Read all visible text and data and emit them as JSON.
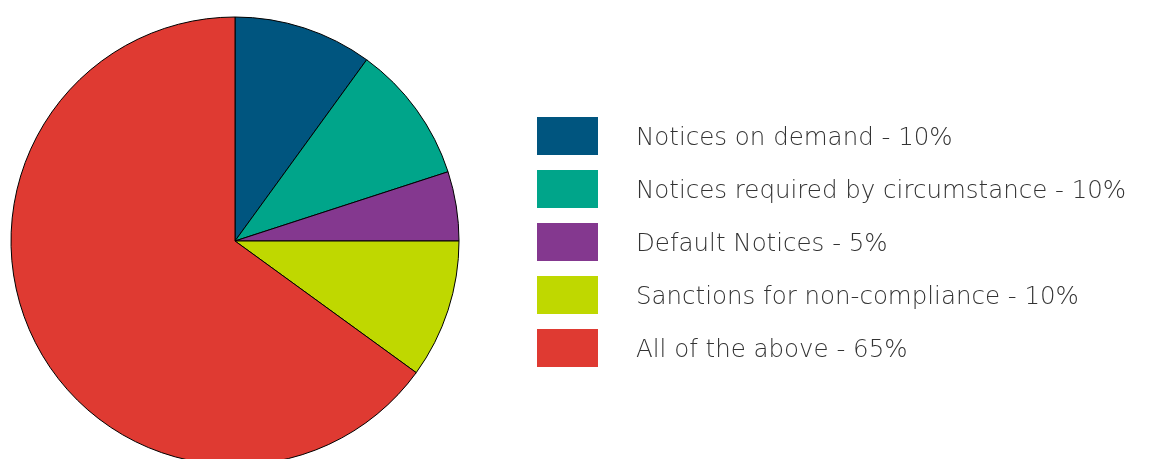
{
  "chart_data": {
    "type": "pie",
    "categories": [
      "Notices on demand - 10%",
      "Notices required by circumstance - 10%",
      "Default Notices - 5%",
      "Sanctions for non-compliance - 10%",
      "All of the above - 65%"
    ],
    "values": [
      10,
      10,
      5,
      10,
      65
    ],
    "colors": [
      "#00557f",
      "#00a58a",
      "#84388f",
      "#bfd800",
      "#df3a32"
    ],
    "legend": "right"
  }
}
